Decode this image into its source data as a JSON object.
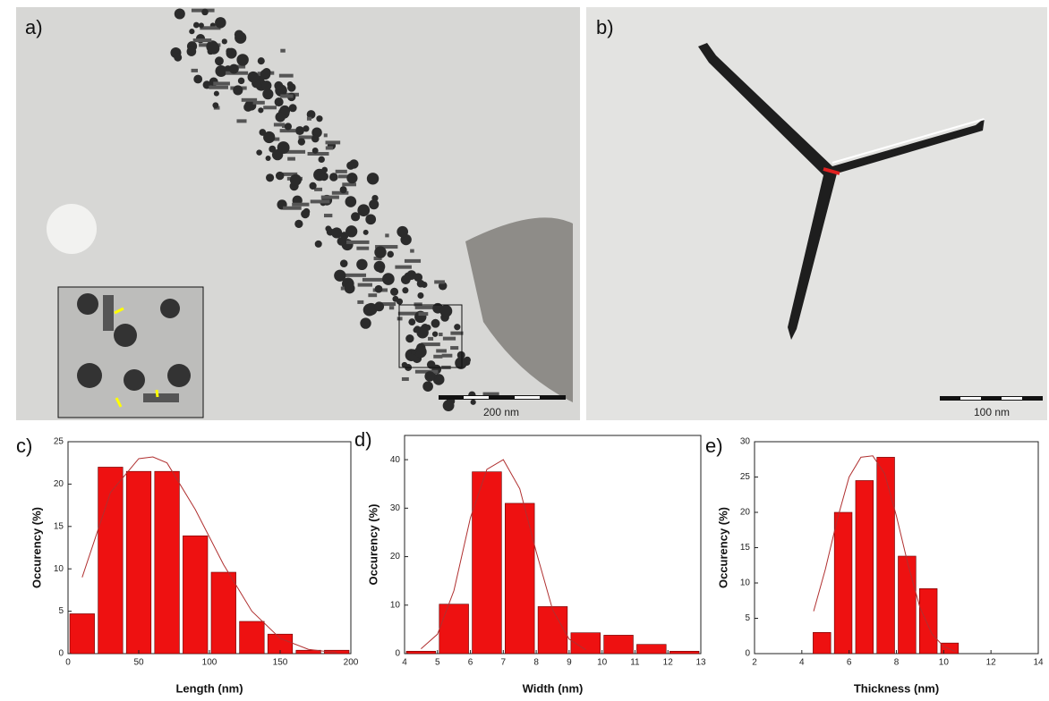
{
  "images": [
    {
      "label": "a)",
      "scale_bar": "200 nm"
    },
    {
      "label": "b)",
      "scale_bar": "100 nm"
    }
  ],
  "chart_data": [
    {
      "type": "histogram",
      "label": "c)",
      "xlabel": "Length (nm)",
      "ylabel": "Occurency (%)",
      "color": "#ee1111",
      "fit_color": "#b03030",
      "bins": [
        0,
        20,
        40,
        60,
        80,
        100,
        120,
        140,
        160,
        180,
        200
      ],
      "values": [
        4.7,
        22,
        21.5,
        21.5,
        13.9,
        9.6,
        3.8,
        2.3,
        0.4,
        0.4
      ],
      "fit": {
        "x": [
          10,
          30,
          50,
          60,
          70,
          90,
          110,
          130,
          150,
          170,
          190
        ],
        "values": [
          9,
          19,
          23,
          23.2,
          22.5,
          17,
          10.5,
          5,
          1.8,
          0.5,
          0.1
        ]
      },
      "xlim": [
        0,
        200
      ],
      "xticks": [
        0,
        50,
        100,
        150,
        200
      ],
      "ylim": [
        0,
        25
      ],
      "yticks": [
        0,
        5,
        10,
        15,
        20,
        25
      ]
    },
    {
      "type": "histogram",
      "label": "d)",
      "xlabel": "Width (nm)",
      "ylabel": "Occurency (%)",
      "color": "#ee1111",
      "fit_color": "#b03030",
      "bins": [
        4,
        5,
        6,
        7,
        8,
        9,
        10,
        11,
        12,
        13
      ],
      "values": [
        0.5,
        10.2,
        37.5,
        31,
        9.7,
        4.3,
        3.8,
        1.9,
        0.5
      ],
      "fit": {
        "x": [
          4.5,
          5,
          5.5,
          6,
          6.5,
          7,
          7.5,
          8,
          8.5,
          9,
          9.5
        ],
        "values": [
          1,
          4,
          13,
          28,
          38,
          40,
          34,
          21,
          9,
          3,
          0.8
        ]
      },
      "xlim": [
        4,
        13
      ],
      "xticks": [
        4,
        5,
        6,
        7,
        8,
        9,
        10,
        11,
        12,
        13
      ],
      "ylim": [
        0,
        45
      ],
      "yticks": [
        0,
        10,
        20,
        30,
        40
      ]
    },
    {
      "type": "histogram",
      "label": "e)",
      "xlabel": "Thickness (nm)",
      "ylabel": "Occurency (%)",
      "color": "#ee1111",
      "fit_color": "#b03030",
      "bins": [
        4.4,
        5.3,
        6.2,
        7.1,
        8.0,
        8.9,
        9.8,
        10.7
      ],
      "values": [
        3,
        20,
        24.5,
        27.8,
        13.8,
        9.2,
        1.5
      ],
      "fit": {
        "x": [
          4.5,
          5,
          5.5,
          6,
          6.5,
          7,
          7.5,
          8,
          8.5,
          9,
          9.5,
          10,
          10.5
        ],
        "values": [
          6,
          12,
          19,
          25,
          27.8,
          28,
          25.5,
          19.5,
          12.5,
          6.5,
          2.8,
          1,
          0.3
        ]
      },
      "xlim": [
        2,
        14
      ],
      "xticks": [
        2,
        4,
        6,
        8,
        10,
        12,
        14
      ],
      "ylim": [
        0,
        30
      ],
      "yticks": [
        0,
        5,
        10,
        15,
        20,
        25,
        30
      ]
    }
  ]
}
